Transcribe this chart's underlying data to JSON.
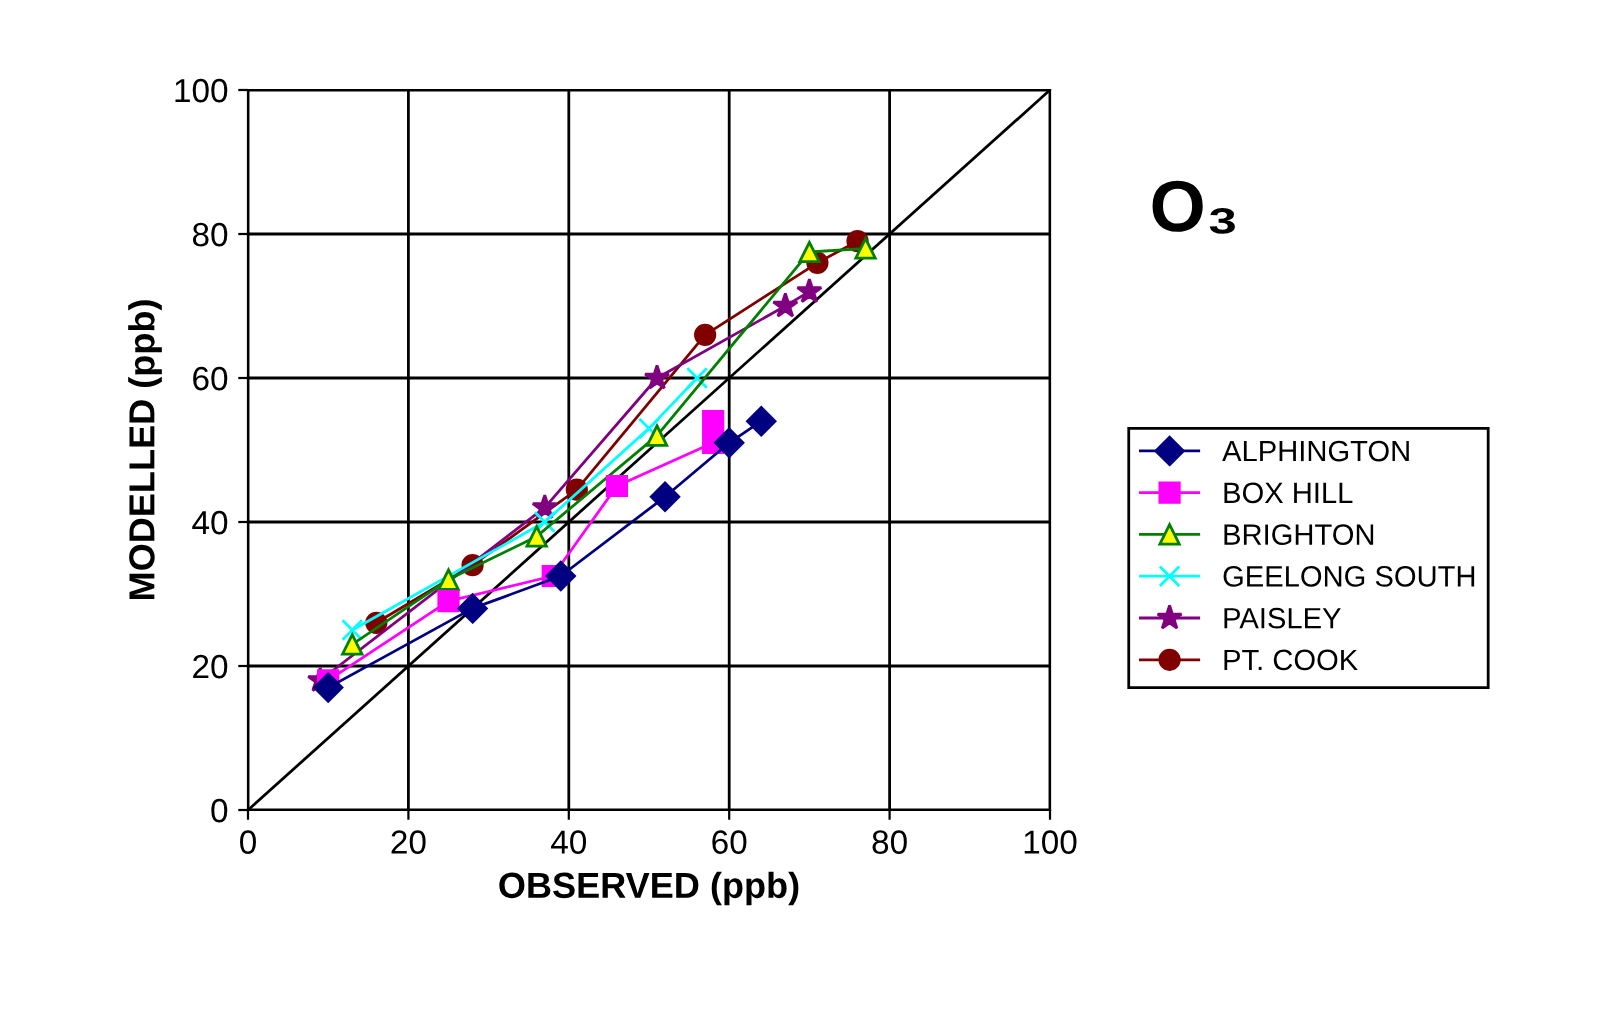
{
  "chart_data": {
    "type": "line",
    "title": "O₃",
    "xlabel": "OBSERVED (ppb)",
    "ylabel": "MODELLED (ppb)",
    "xlim": [
      0,
      100
    ],
    "ylim": [
      0,
      100
    ],
    "xticks": [
      0,
      20,
      40,
      60,
      80,
      100
    ],
    "yticks": [
      0,
      20,
      40,
      60,
      80,
      100
    ],
    "grid": true,
    "legend": "right",
    "series": [
      {
        "name": "ALPHINGTON",
        "color": "#000080",
        "marker": "diamond",
        "x": [
          10,
          28,
          39,
          52,
          60,
          64
        ],
        "values": [
          17,
          28,
          32.5,
          43.5,
          51,
          54
        ]
      },
      {
        "name": "BOX HILL",
        "color": "#ff00ff",
        "marker": "square",
        "x": [
          10,
          25,
          38,
          46,
          58,
          58
        ],
        "values": [
          18,
          29,
          32.5,
          45,
          51,
          54
        ]
      },
      {
        "name": "BRIGHTON",
        "color": "#008000",
        "marker": "triangle",
        "x": [
          13,
          25,
          36,
          51,
          70,
          77
        ],
        "values": [
          23,
          32,
          38,
          52,
          77.5,
          78
        ]
      },
      {
        "name": "GEELONG SOUTH",
        "color": "#00ffff",
        "marker": "cross",
        "x": [
          13,
          37,
          50,
          56
        ],
        "values": [
          25,
          40,
          53,
          60
        ]
      },
      {
        "name": "PAISLEY",
        "color": "#800080",
        "marker": "star",
        "x": [
          9,
          37,
          51,
          67,
          70
        ],
        "values": [
          18,
          42,
          60,
          70,
          72
        ]
      },
      {
        "name": "PT. COOK",
        "color": "#800000",
        "marker": "circle",
        "x": [
          16,
          28,
          41,
          57,
          71,
          76
        ],
        "values": [
          26,
          34,
          44.5,
          66,
          76,
          79
        ]
      },
      {
        "color": "#000000",
        "marker": "none",
        "x": [
          0,
          100
        ],
        "values": [
          0,
          100
        ]
      }
    ]
  }
}
